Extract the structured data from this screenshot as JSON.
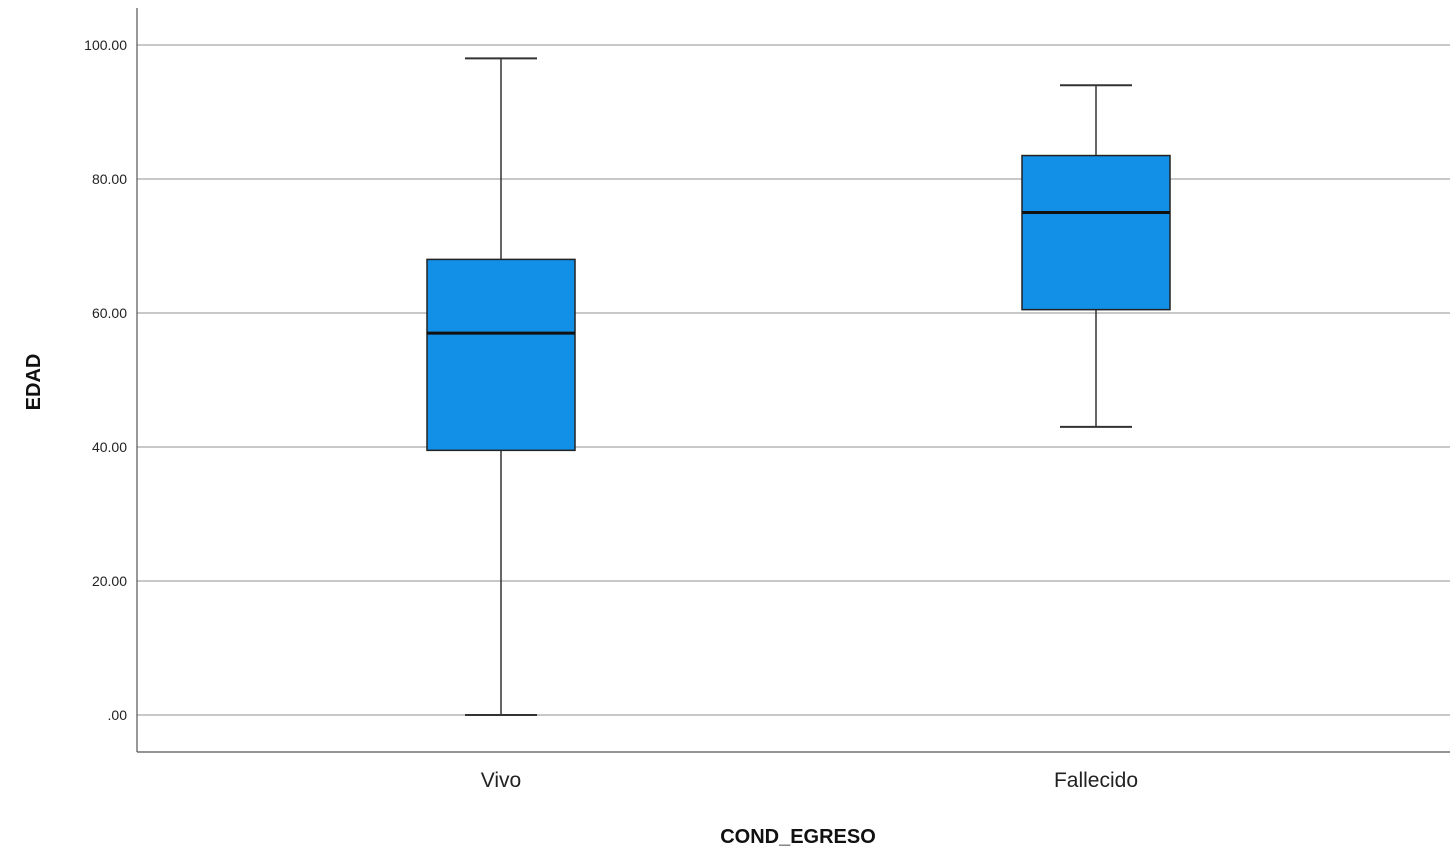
{
  "chart_data": {
    "type": "boxplot",
    "xlabel": "COND_EGRESO",
    "ylabel": "EDAD",
    "ylim": [
      -5.5,
      105.5
    ],
    "yticks": [
      0,
      20,
      40,
      60,
      80,
      100
    ],
    "ytick_labels": [
      ".00",
      "20.00",
      "40.00",
      "60.00",
      "80.00",
      "100.00"
    ],
    "grid": true,
    "box_color": "#128fe6",
    "categories": [
      "Vivo",
      "Fallecido"
    ],
    "boxes": [
      {
        "category": "Vivo",
        "whisker_low": 0,
        "q1": 39.5,
        "median": 57,
        "q3": 68,
        "whisker_high": 98
      },
      {
        "category": "Fallecido",
        "whisker_low": 43,
        "q1": 60.5,
        "median": 75,
        "q3": 83.5,
        "whisker_high": 94
      }
    ]
  }
}
